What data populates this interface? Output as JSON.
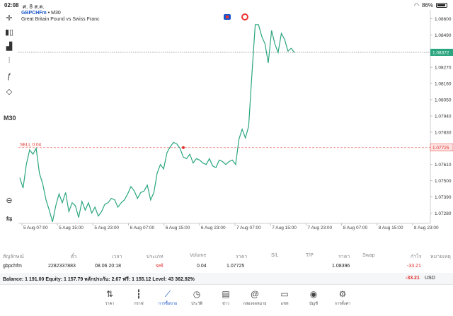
{
  "status": {
    "time": "02:08",
    "date": "ศ. 8 ส.ค.",
    "battery": "86%"
  },
  "toolbar": {
    "timeframe": "M30"
  },
  "symbol": {
    "name": "GBPCHFm",
    "period": "M30",
    "description": "Great Britain Pound vs Swiss Franc"
  },
  "chart_data": {
    "type": "line",
    "price_label": "1.08372",
    "sell_label": "SELL 0.04",
    "sell_price_label": "1.07725",
    "sell_price": 1.07725,
    "current_price": 1.08372,
    "y_ticks": [
      "1.08600",
      "1.08490",
      "1.08270",
      "1.08160",
      "1.08050",
      "1.07940",
      "1.07830",
      "1.07610",
      "1.07500",
      "1.07390",
      "1.07280"
    ],
    "x_ticks": [
      "5 Aug 07:00",
      "5 Aug 15:00",
      "5 Aug 23:00",
      "6 Aug 07:00",
      "6 Aug 15:00",
      "6 Aug 23:00",
      "7 Aug 07:00",
      "7 Aug 15:00",
      "7 Aug 23:00",
      "8 Aug 07:00",
      "8 Aug 15:00",
      "8 Aug 23:00"
    ],
    "ylim": [
      1.0721,
      1.0866
    ],
    "series": [
      {
        "values": [
          1.0752,
          1.0745,
          1.0761,
          1.0771,
          1.0768,
          1.0772,
          1.0755,
          1.0748,
          1.0737,
          1.073,
          1.0722,
          1.0733,
          1.0741,
          1.0735,
          1.0742,
          1.0729,
          1.0735,
          1.0733,
          1.0725,
          1.0736,
          1.073,
          1.0735,
          1.0728,
          1.0732,
          1.0726,
          1.0729,
          1.0734,
          1.0735,
          1.0738,
          1.0737,
          1.0732,
          1.0735,
          1.0737,
          1.0741,
          1.0746,
          1.0743,
          1.0738,
          1.0742,
          1.0743,
          1.0747,
          1.0737,
          1.0742,
          1.0755,
          1.0761,
          1.0758,
          1.0769,
          1.0773,
          1.0776,
          1.0775,
          1.0772,
          1.0766,
          1.0765,
          1.0768,
          1.0762,
          1.0765,
          1.0764,
          1.0762,
          1.0761,
          1.0765,
          1.076,
          1.0759,
          1.0764,
          1.0763,
          1.0761,
          1.0763,
          1.0764,
          1.0761,
          1.0778,
          1.0785,
          1.0779,
          1.0787,
          1.0823,
          1.0856,
          1.0856,
          1.0848,
          1.0843,
          1.083,
          1.0852,
          1.0843,
          1.0837,
          1.085,
          1.0846,
          1.0838,
          1.084,
          1.0837
        ]
      }
    ]
  },
  "table": {
    "headers": [
      "สัญลักษณ์",
      "ตั๋ว",
      "เวลา",
      "ประเภท",
      "Volume",
      "ราคา",
      "S/L",
      "T/P",
      "ราคา",
      "Swap",
      "กำไร",
      "หมายเหตุ"
    ],
    "row": {
      "symbol": "gbpchfm",
      "ticket": "2282337883",
      "time": "08.06 20:18",
      "type": "sell",
      "volume": "0.04",
      "open_price": "1.07725",
      "current_price": "1.08396",
      "profit": "-33.21"
    }
  },
  "balance": {
    "text": "Balance: 1 191.00 Equity: 1 157.79 หลักประกัน: 2.67 ฟรี: 1 155.12 Level: 43 362.92%",
    "pl": "-33.21",
    "currency": "USD"
  },
  "tabs": [
    {
      "label": "ราคา",
      "icon": "arrows-updown-icon"
    },
    {
      "label": "กราฟ",
      "icon": "candles-icon"
    },
    {
      "label": "การซื้อขาย",
      "icon": "trade-chart-icon"
    },
    {
      "label": "ประวัติ",
      "icon": "history-icon"
    },
    {
      "label": "ข่าว",
      "icon": "news-icon"
    },
    {
      "label": "กล่องจดหมาย",
      "icon": "mail-at-icon"
    },
    {
      "label": "แชท",
      "icon": "chat-icon"
    },
    {
      "label": "บัญชี",
      "icon": "account-icon"
    },
    {
      "label": "การตั้งค่า",
      "icon": "settings-gear-icon"
    }
  ]
}
